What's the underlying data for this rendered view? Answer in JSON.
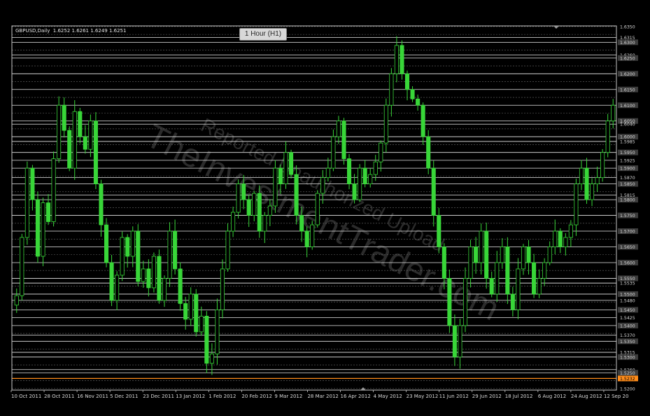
{
  "header": {
    "symbol_line": "GBPUSD,Daily  1.6252 1.6261 1.6249 1.6251",
    "timeframe_badge": "1 Hour (H1)"
  },
  "watermark": {
    "line1": "Reported Unauthorized Upload",
    "line2": "TheInvestmentTrader.com"
  },
  "colors": {
    "background": "#000000",
    "candles": "#38d638",
    "axis": "#c8c8c8",
    "grid": "#e8e8e8",
    "price_label_bg": "#3c3c3c",
    "current_price": "#ff8c1a"
  },
  "chart_data": {
    "type": "candlestick",
    "x_tick_labels": [
      "10 Oct 2011",
      "28 Oct 2011",
      "16 Nov 2011",
      "5 Dec 2011",
      "23 Dec 2011",
      "13 Jan 2012",
      "1 Feb 2012",
      "20 Feb 2012",
      "9 Mar 2012",
      "28 Mar 2012",
      "16 Apr 2012",
      "4 May 2012",
      "23 May 2012",
      "11 Jun 2012",
      "29 Jun 2012",
      "18 Jul 2012",
      "6 Aug 2012",
      "24 Aug 2012",
      "12 Sep 20"
    ],
    "y_tick_labels": [
      "1.6350",
      "1.6315",
      "1.6300",
      "1.6260",
      "1.6250",
      "1.6200",
      "1.6150",
      "1.6100",
      "1.6050",
      "1.6040",
      "1.6000",
      "1.5985",
      "1.5950",
      "1.5925",
      "1.5900",
      "1.5870",
      "1.5850",
      "1.5815",
      "1.5800",
      "1.5750",
      "1.5700",
      "1.5650",
      "1.5600",
      "1.5550",
      "1.5535",
      "1.5500",
      "1.5480",
      "1.5450",
      "1.5425",
      "1.5400",
      "1.5370",
      "1.5350",
      "1.5315",
      "1.5300",
      "1.5260",
      "1.5250",
      "1.5200"
    ],
    "solid_levels": [
      1.6315,
      1.63,
      1.626,
      1.625,
      1.62,
      1.615,
      1.61,
      1.605,
      1.604,
      1.6,
      1.5985,
      1.595,
      1.5925,
      1.59,
      1.587,
      1.585,
      1.5815,
      1.58,
      1.575,
      1.57,
      1.565,
      1.56,
      1.555,
      1.5535,
      1.55,
      1.548,
      1.545,
      1.5425,
      1.54,
      1.537,
      1.535,
      1.5315,
      1.53,
      1.526,
      1.525
    ],
    "current_price": "1.5232",
    "ylim": [
      1.5195,
      1.6352
    ],
    "closes": [
      1.5495,
      1.568,
      1.59,
      1.58,
      1.562,
      1.579,
      1.573,
      1.593,
      1.61,
      1.602,
      1.59,
      1.608,
      1.6,
      1.596,
      1.605,
      1.585,
      1.572,
      1.56,
      1.548,
      1.556,
      1.568,
      1.562,
      1.57,
      1.554,
      1.558,
      1.552,
      1.562,
      1.548,
      1.555,
      1.57,
      1.558,
      1.547,
      1.542,
      1.55,
      1.538,
      1.543,
      1.528,
      1.531,
      1.545,
      1.558,
      1.57,
      1.576,
      1.585,
      1.58,
      1.575,
      1.582,
      1.57,
      1.575,
      1.578,
      1.59,
      1.585,
      1.595,
      1.588,
      1.575,
      1.57,
      1.565,
      1.572,
      1.582,
      1.587,
      1.59,
      1.6,
      1.605,
      1.593,
      1.585,
      1.58,
      1.59,
      1.585,
      1.588,
      1.592,
      1.598,
      1.61,
      1.62,
      1.629,
      1.62,
      1.615,
      1.612,
      1.61,
      1.6,
      1.59,
      1.575,
      1.565,
      1.555,
      1.54,
      1.53,
      1.54,
      1.555,
      1.565,
      1.56,
      1.57,
      1.555,
      1.55,
      1.56,
      1.565,
      1.55,
      1.545,
      1.558,
      1.565,
      1.56,
      1.55,
      1.555,
      1.56,
      1.565,
      1.57,
      1.565,
      1.568,
      1.572,
      1.585,
      1.59,
      1.58,
      1.585,
      1.587,
      1.595,
      1.605,
      1.61
    ]
  }
}
